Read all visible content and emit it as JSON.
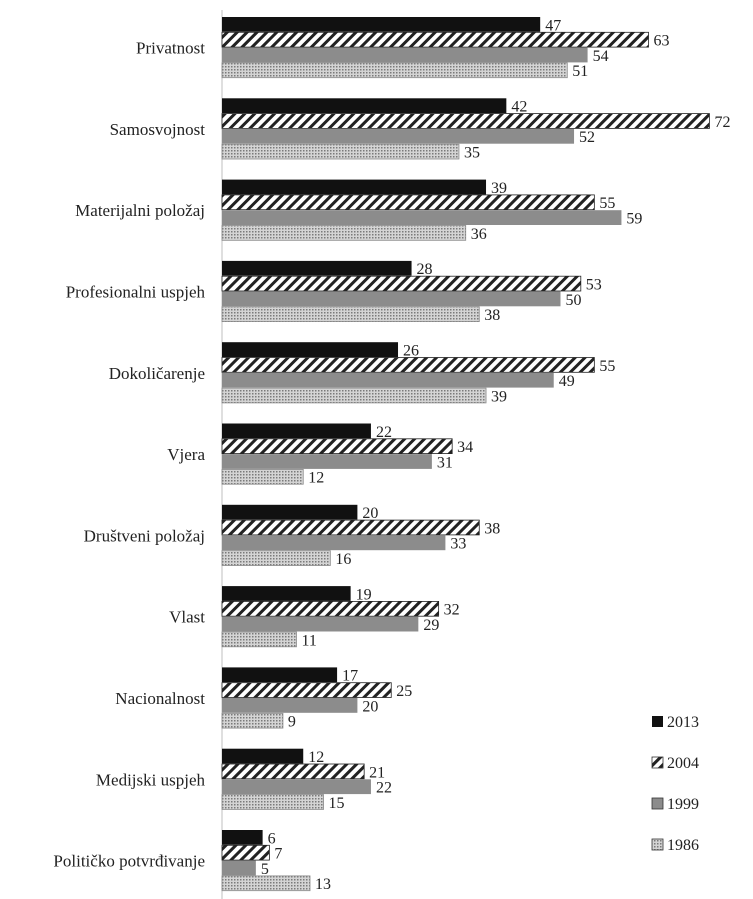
{
  "chart_data": {
    "type": "bar",
    "orientation": "horizontal",
    "categories": [
      "Privatnost",
      "Samosvojnost",
      "Materijalni položaj",
      "Profesionalni uspjeh",
      "Dokoličarenje",
      "Vjera",
      "Društveni položaj",
      "Vlast",
      "Nacionalnost",
      "Medijski uspjeh",
      "Političko potvrđivanje"
    ],
    "series": [
      {
        "name": "2013",
        "values": [
          47,
          42,
          39,
          28,
          26,
          22,
          20,
          19,
          17,
          12,
          6
        ],
        "pattern": "solid",
        "color": "#111111"
      },
      {
        "name": "2004",
        "values": [
          63,
          72,
          55,
          53,
          55,
          34,
          38,
          32,
          25,
          21,
          7
        ],
        "pattern": "diagonal-hatch",
        "color": "#222222"
      },
      {
        "name": "1999",
        "values": [
          54,
          52,
          59,
          50,
          49,
          31,
          33,
          29,
          20,
          22,
          5
        ],
        "pattern": "solid",
        "color": "#8c8c8c"
      },
      {
        "name": "1986",
        "values": [
          51,
          35,
          36,
          38,
          39,
          12,
          16,
          11,
          9,
          15,
          13
        ],
        "pattern": "dotted",
        "color": "#bdbdbd"
      }
    ],
    "xlim": [
      0,
      75
    ],
    "legend_position": "bottom-right",
    "grid": false
  }
}
